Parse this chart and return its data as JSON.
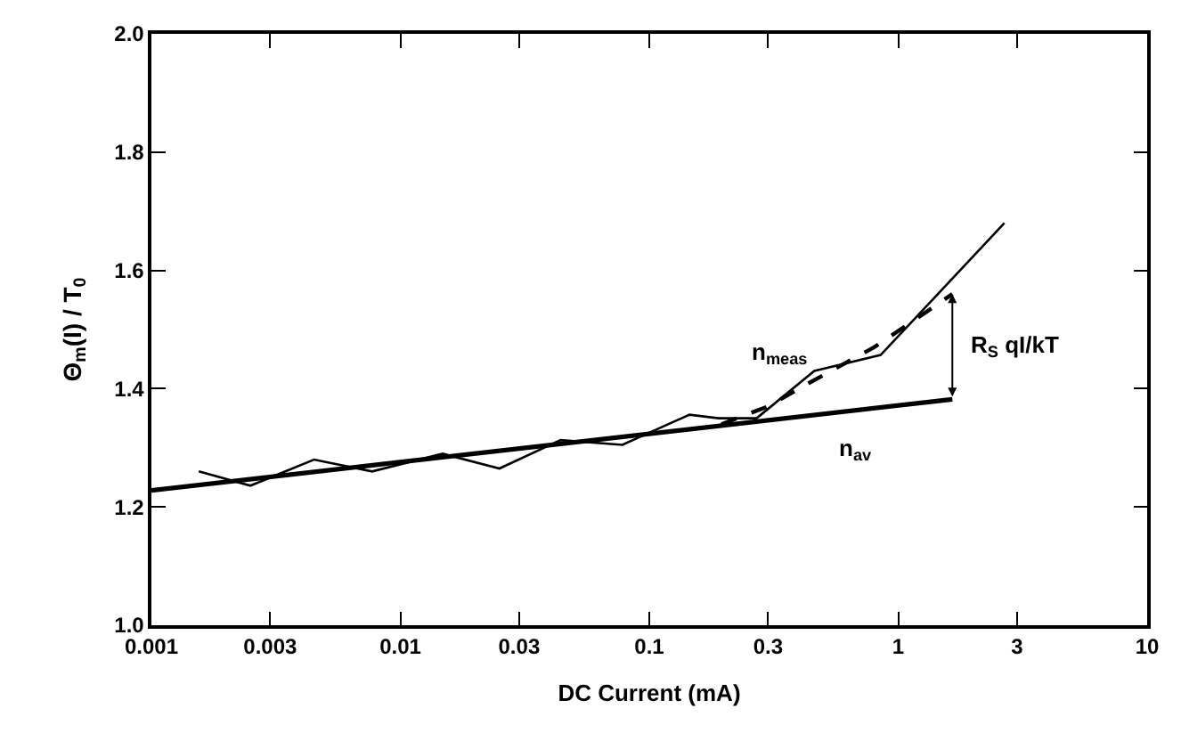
{
  "chart_data": {
    "type": "line",
    "xlabel": "DC Current (mA)",
    "ylabel": "Θ$_{m}$(I) / T$_{0}$",
    "log": "x",
    "legend": false,
    "marker": "none",
    "xlim": [
      0.001,
      10
    ],
    "xticks": [
      0.001,
      0.003,
      0.01,
      0.03,
      0.1,
      0.3,
      1,
      3,
      10
    ],
    "ylim": [
      1.0,
      2.0
    ],
    "yticks": [
      {
        "value": 1.0,
        "label": "1.0"
      },
      {
        "value": 1.2,
        "label": "1.2"
      },
      {
        "value": 1.4,
        "label": "1.4"
      },
      {
        "value": 1.6,
        "label": "1.6"
      },
      {
        "value": 1.8,
        "label": "1.8"
      },
      {
        "value": 2.0,
        "label": "2.0"
      }
    ],
    "series": [
      {
        "color": "#000000",
        "line_style": "solid",
        "x": [
          0.00155,
          0.0025,
          0.0045,
          0.0077,
          0.0148,
          0.025,
          0.044,
          0.078,
          0.145,
          0.19,
          0.27,
          0.46,
          0.58,
          0.85,
          2.67
        ],
        "values": [
          1.26,
          1.236,
          1.28,
          1.26,
          1.29,
          1.265,
          1.313,
          1.305,
          1.356,
          1.35,
          1.35,
          1.43,
          1.44,
          1.457,
          1.68
        ]
      },
      {
        "name": "n$_{av}$",
        "color": "#000000",
        "line_style": "solid",
        "x": [
          0.001,
          1.65
        ],
        "values": [
          1.228,
          1.382
        ]
      },
      {
        "name": "n$_{meas}$",
        "color": "#000000",
        "line_style": "dashed",
        "x": [
          0.195,
          0.3,
          0.44,
          0.8,
          1.2,
          1.65
        ],
        "values": [
          1.34,
          1.37,
          1.41,
          1.47,
          1.52,
          1.56
        ]
      }
    ],
    "annotations": [
      "R$_{S}$ qI/kT"
    ]
  }
}
